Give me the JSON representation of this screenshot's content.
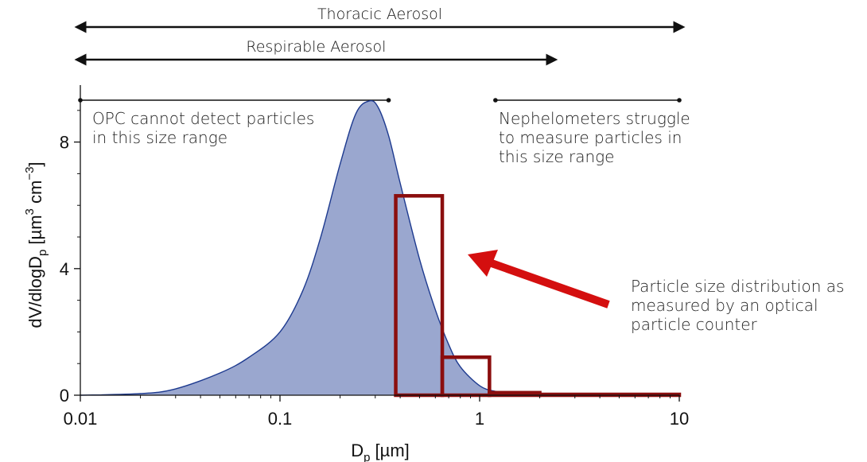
{
  "chart_data": {
    "type": "area",
    "x_scale": "log",
    "xlim": [
      0.01,
      10
    ],
    "ylim": [
      0,
      9.8
    ],
    "xlabel": "D",
    "xlabel_sub": "p",
    "xlabel_unit": " [µm]",
    "ylabel_main": "dV/dlogD",
    "ylabel_sub": "p",
    "ylabel_unit_a": " [µm",
    "ylabel_sup_a": "3",
    "ylabel_unit_b": " cm",
    "ylabel_sup_b": "−3",
    "ylabel_close": "]",
    "x_ticks": [
      {
        "value": 0.01,
        "label": "0.01"
      },
      {
        "value": 0.1,
        "label": "0.1"
      },
      {
        "value": 1,
        "label": "1"
      },
      {
        "value": 10,
        "label": "10"
      }
    ],
    "y_ticks": [
      {
        "value": 0,
        "label": "0"
      },
      {
        "value": 4,
        "label": "4"
      },
      {
        "value": 8,
        "label": "8"
      }
    ],
    "distribution": {
      "x": [
        0.01,
        0.02,
        0.03,
        0.05,
        0.07,
        0.1,
        0.13,
        0.16,
        0.2,
        0.24,
        0.28,
        0.31,
        0.35,
        0.4,
        0.5,
        0.6,
        0.7,
        0.8,
        1.0,
        1.2,
        1.5,
        2.0,
        3.0,
        5.0,
        10.0
      ],
      "y": [
        0.0,
        0.05,
        0.2,
        0.7,
        1.2,
        2.0,
        3.3,
        5.0,
        7.3,
        8.9,
        9.3,
        9.1,
        8.2,
        6.7,
        4.3,
        2.7,
        1.6,
        0.9,
        0.3,
        0.12,
        0.05,
        0.02,
        0.0,
        0.0,
        0.0
      ],
      "fill": "#9aa7cf",
      "stroke": "#1d3a8f"
    },
    "opc_bins": {
      "color": "#8b0e0e",
      "bins": [
        {
          "x0": 0.38,
          "x1": 0.65,
          "value": 6.3
        },
        {
          "x0": 0.65,
          "x1": 1.12,
          "value": 1.2
        },
        {
          "x0": 1.12,
          "x1": 2.0,
          "value": 0.08
        },
        {
          "x0": 2.0,
          "x1": 10.0,
          "value": 0.0
        }
      ]
    },
    "ranges": [
      {
        "name": "Thoracic Aerosol",
        "x0": 0.01,
        "x1": 10,
        "style": "arrow"
      },
      {
        "name": "Respirable Aerosol",
        "x0": 0.01,
        "x1": 2.3,
        "style": "arrow"
      },
      {
        "name": "opc-range",
        "x0": 0.01,
        "x1": 0.35,
        "style": "dot"
      },
      {
        "name": "nephelometer-range",
        "x0": 1.2,
        "x1": 10,
        "style": "dot"
      }
    ],
    "annotations": {
      "opc_line1": "OPC cannot detect particles",
      "opc_line2": "in this size range",
      "neph_line1": "Nephelometers struggle",
      "neph_line2": "to measure particles in",
      "neph_line3": "this size range",
      "psd_line1": "Particle size distribution as",
      "psd_line2": "measured by an optical",
      "psd_line3": "particle counter"
    },
    "arrow_color": "#d40f0f"
  }
}
